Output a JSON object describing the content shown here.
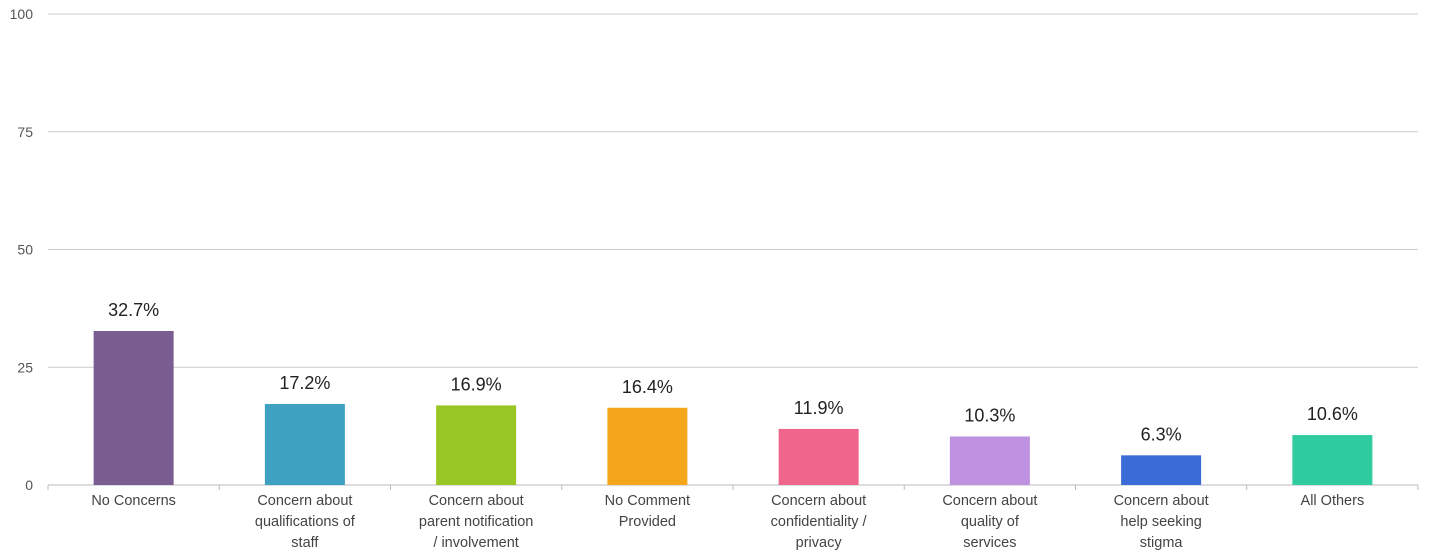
{
  "chart_data": {
    "type": "bar",
    "categories": [
      [
        "No Concerns"
      ],
      [
        "Concern about",
        "qualifications of",
        "staff"
      ],
      [
        "Concern about",
        "parent notification",
        "/ involvement"
      ],
      [
        "No Comment",
        "Provided"
      ],
      [
        "Concern about",
        "confidentiality /",
        "privacy"
      ],
      [
        "Concern about",
        "quality of",
        "services"
      ],
      [
        "Concern about",
        "help seeking",
        "stigma"
      ],
      [
        "All Others"
      ]
    ],
    "values": [
      32.7,
      17.2,
      16.9,
      16.4,
      11.9,
      10.3,
      6.3,
      10.6
    ],
    "data_labels": [
      "32.7%",
      "17.2%",
      "16.9%",
      "16.4%",
      "11.9%",
      "10.3%",
      "6.3%",
      "10.6%"
    ],
    "colors": [
      "#7b5e91",
      "#3ea1c2",
      "#98c625",
      "#f5a61b",
      "#f0658a",
      "#bf91e1",
      "#3a6bd6",
      "#2ecc9e"
    ],
    "yticks": [
      "0",
      "25",
      "50",
      "75",
      "100"
    ],
    "ylim": [
      0,
      100
    ],
    "grid": true,
    "title": "",
    "xlabel": "",
    "ylabel": ""
  }
}
